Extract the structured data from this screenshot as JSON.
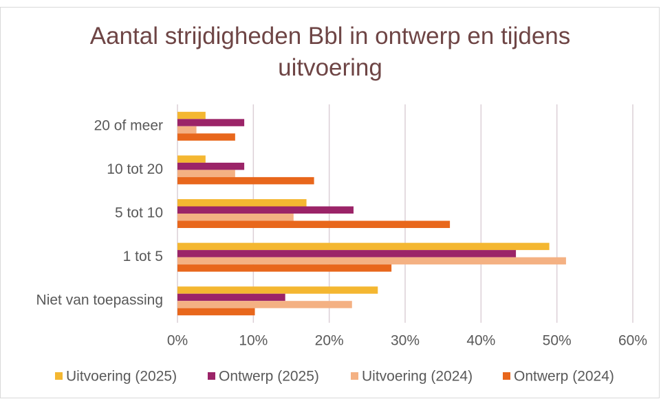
{
  "chart_data": {
    "type": "hbar",
    "title": "Aantal strijdigheden Bbl in ontwerp en tijdens uitvoering",
    "categories": [
      "20 of meer",
      "10 tot 20",
      "5 tot 10",
      "1 tot 5",
      "Niet van toepassing"
    ],
    "series": [
      {
        "name": "Uitvoering (2025)",
        "color": "#F4B731",
        "values": [
          3.7,
          3.7,
          17.0,
          49.0,
          26.4
        ]
      },
      {
        "name": "Ontwerp (2025)",
        "color": "#9B2468",
        "values": [
          8.8,
          8.8,
          23.2,
          44.6,
          14.2
        ]
      },
      {
        "name": "Uitvoering (2024)",
        "color": "#F4B183",
        "values": [
          2.5,
          7.6,
          15.3,
          51.2,
          23.0
        ]
      },
      {
        "name": "Ontwerp (2024)",
        "color": "#E8671C",
        "values": [
          7.6,
          18.0,
          35.9,
          28.2,
          10.2
        ]
      }
    ],
    "xlim": [
      0,
      60
    ],
    "xticks": [
      {
        "value": 0,
        "label": "0%"
      },
      {
        "value": 10,
        "label": "10%"
      },
      {
        "value": 20,
        "label": "20%"
      },
      {
        "value": 30,
        "label": "30%"
      },
      {
        "value": 40,
        "label": "40%"
      },
      {
        "value": 50,
        "label": "50%"
      },
      {
        "value": 60,
        "label": "60%"
      }
    ],
    "grid": true,
    "legend": "bottom"
  }
}
